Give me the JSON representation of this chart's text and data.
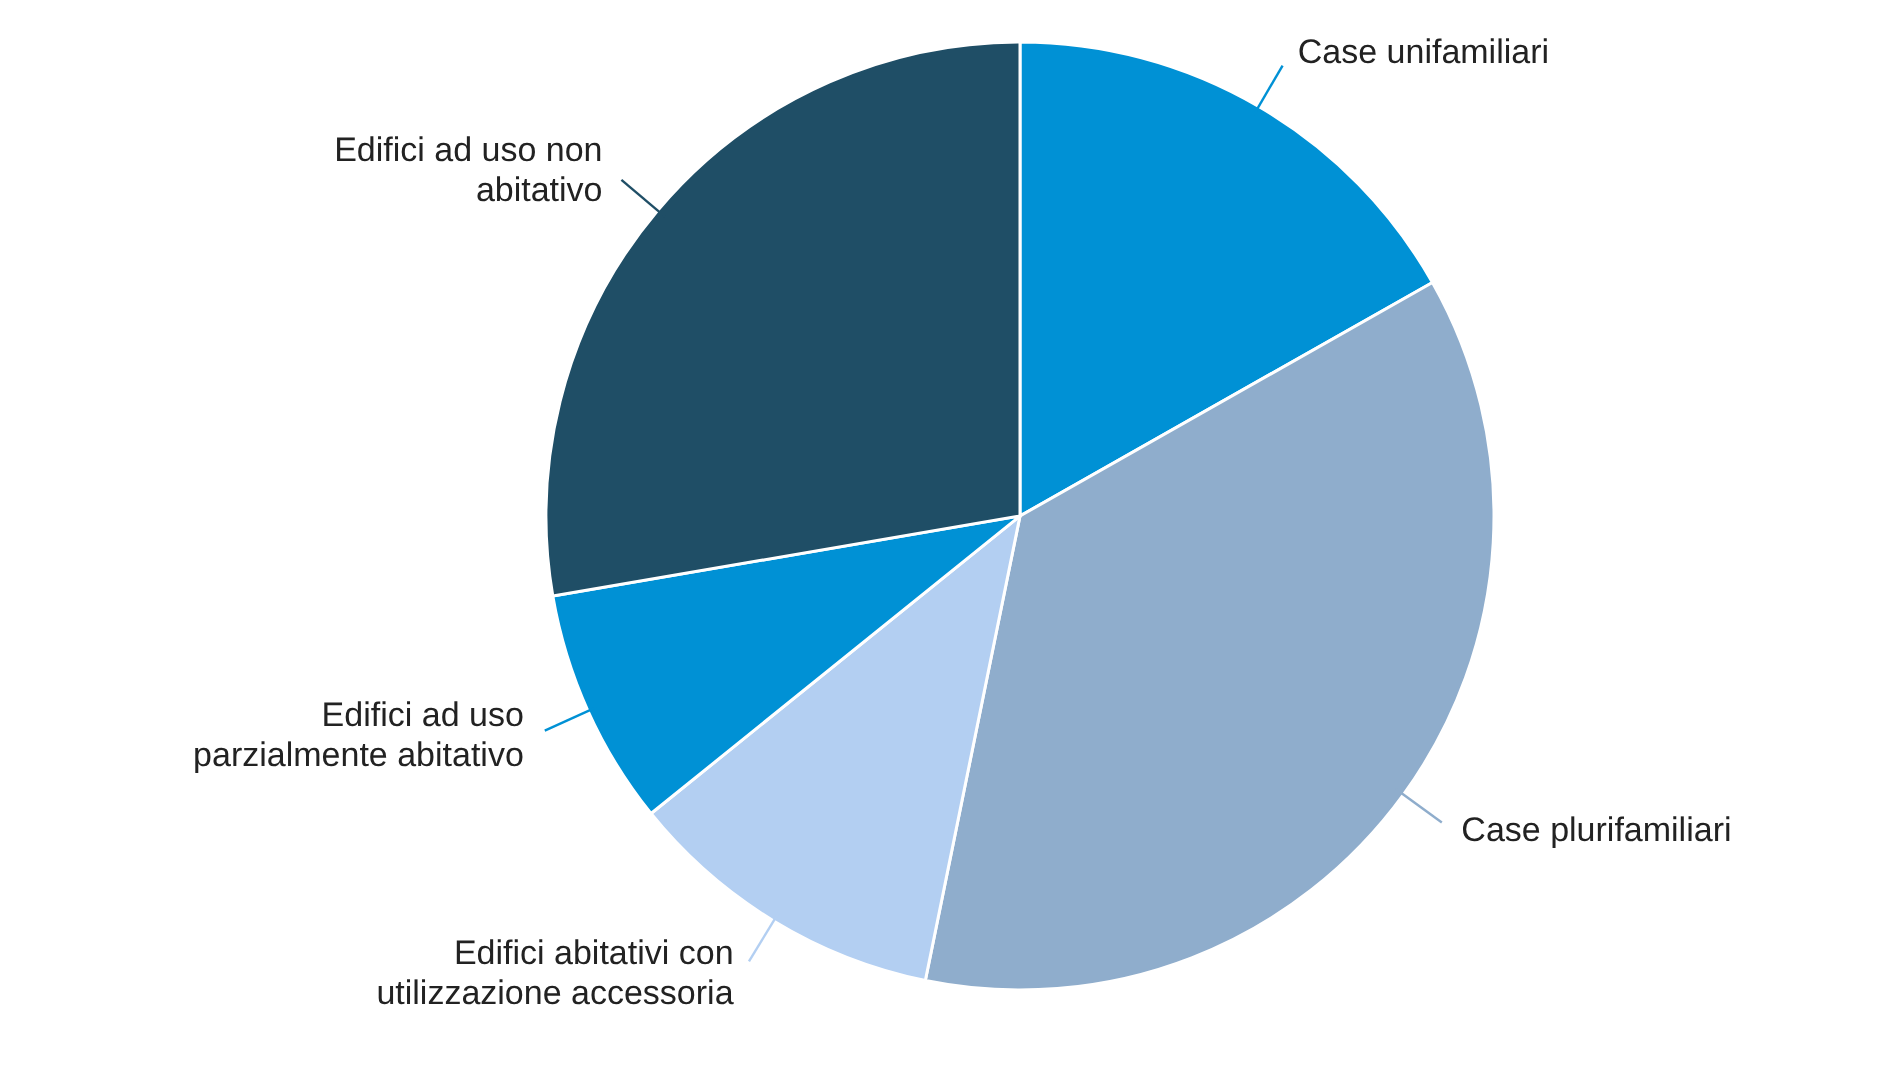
{
  "chart_data": {
    "type": "pie",
    "categories": [
      "Case unifamiliari",
      "Case plurifamiliari",
      "Edifici abitativi con utilizzazione accessoria",
      "Edifici ad uso parzialmente abitativo",
      "Edifici ad uso non abitativo"
    ],
    "values": [
      16.8,
      36.4,
      11.0,
      8.1,
      27.7
    ],
    "colors": [
      "#0091d5",
      "#8fadcc",
      "#b3cff2",
      "#0091d5",
      "#1f4e66"
    ]
  }
}
